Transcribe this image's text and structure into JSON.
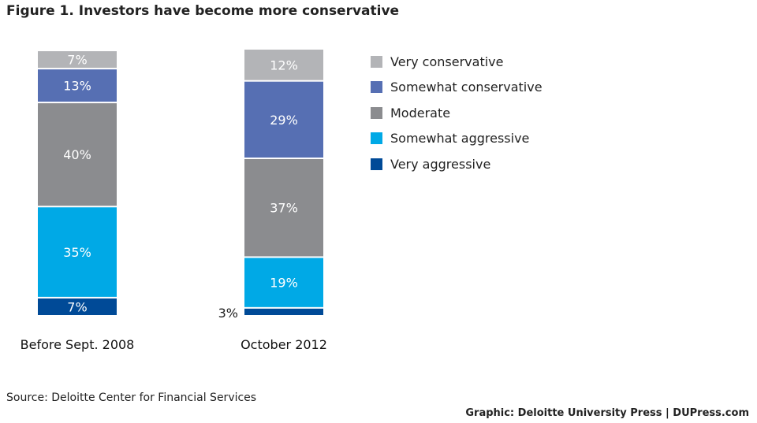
{
  "title": "Figure 1. Investors have become more conservative",
  "source": "Source: Deloitte Center for Financial Services",
  "credit": "Graphic: Deloitte University Press  |  DUPress.com",
  "colors": {
    "very_conservative": "#b3b4b7",
    "somewhat_conservative": "#566fb3",
    "moderate": "#8b8c8f",
    "somewhat_aggressive": "#00a9e6",
    "very_aggressive": "#004a97"
  },
  "chart_data": {
    "type": "bar",
    "stacked": true,
    "categories": [
      "Before Sept. 2008",
      "October 2012"
    ],
    "series": [
      {
        "name": "Very aggressive",
        "values": [
          7,
          3
        ],
        "color_key": "very_aggressive"
      },
      {
        "name": "Somewhat aggressive",
        "values": [
          35,
          19
        ],
        "color_key": "somewhat_aggressive"
      },
      {
        "name": "Moderate",
        "values": [
          40,
          37
        ],
        "color_key": "moderate"
      },
      {
        "name": "Somewhat conservative",
        "values": [
          13,
          29
        ],
        "color_key": "somewhat_conservative"
      },
      {
        "name": "Very conservative",
        "values": [
          7,
          12
        ],
        "color_key": "very_conservative"
      }
    ],
    "data_labels": [
      [
        "7%",
        "35%",
        "40%",
        "13%",
        "7%"
      ],
      [
        "3%",
        "19%",
        "37%",
        "29%",
        "12%"
      ]
    ],
    "legend_order": [
      "Very conservative",
      "Somewhat conservative",
      "Moderate",
      "Somewhat aggressive",
      "Very aggressive"
    ],
    "legend_position": "right",
    "grid": false
  }
}
